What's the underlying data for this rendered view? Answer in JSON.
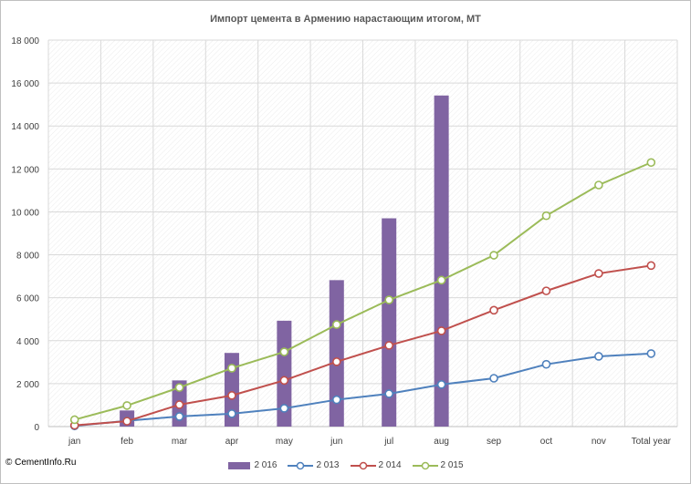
{
  "chart_data": {
    "type": "bar",
    "title": "Импорт цемента в Армению нарастающим  итогом, МТ",
    "categories": [
      "jan",
      "feb",
      "mar",
      "apr",
      "may",
      "jun",
      "jul",
      "aug",
      "sep",
      "oct",
      "nov",
      "Total year"
    ],
    "ylim": [
      0,
      18000
    ],
    "y_ticks": [
      0,
      2000,
      4000,
      6000,
      8000,
      10000,
      12000,
      14000,
      16000,
      18000
    ],
    "y_tick_labels": [
      "0",
      "2 000",
      "4 000",
      "6 000",
      "8 000",
      "10 000",
      "12 000",
      "14 000",
      "16 000",
      "18 000"
    ],
    "grid": true,
    "legend_position": "bottom",
    "series": [
      {
        "name": "2 016",
        "kind": "bar",
        "color": "#8064a2",
        "values": [
          0,
          750,
          2150,
          3430,
          4930,
          6820,
          9700,
          15420,
          null,
          null,
          null,
          null
        ]
      },
      {
        "name": "2 013",
        "kind": "line",
        "color": "#4f81bd",
        "values": [
          30,
          270,
          470,
          600,
          850,
          1250,
          1530,
          1960,
          2250,
          2900,
          3270,
          3400
        ]
      },
      {
        "name": "2 014",
        "kind": "line",
        "color": "#c0504d",
        "values": [
          60,
          250,
          1020,
          1450,
          2150,
          3020,
          3780,
          4460,
          5420,
          6320,
          7130,
          7500
        ]
      },
      {
        "name": "2 015",
        "kind": "line",
        "color": "#9bbb59",
        "values": [
          320,
          980,
          1820,
          2720,
          3480,
          4750,
          5900,
          6820,
          7980,
          9820,
          11250,
          12300
        ]
      }
    ]
  },
  "footer": {
    "copyright": "© CementInfo.Ru"
  }
}
